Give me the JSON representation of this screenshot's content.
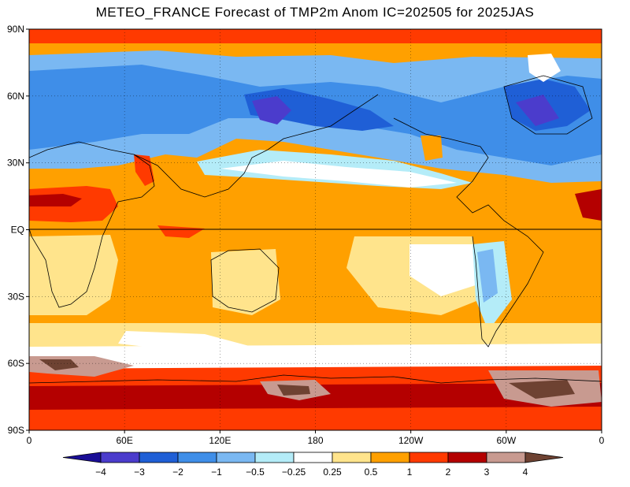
{
  "title": "METEO_FRANCE Forecast of TMP2m Anom IC=202505 for 2025JAS",
  "lat_ticks": [
    "90N",
    "60N",
    "30N",
    "EQ",
    "30S",
    "60S",
    "90S"
  ],
  "lon_ticks": [
    "0",
    "60E",
    "120E",
    "180",
    "120W",
    "60W",
    "0"
  ],
  "colorbar": {
    "labels": [
      "−4",
      "−3",
      "−2",
      "−1",
      "−0.5",
      "−0.25",
      "0.25",
      "0.5",
      "1",
      "2",
      "3",
      "4"
    ],
    "colors": [
      "#1a0e96",
      "#4b3ccc",
      "#1f5fd6",
      "#3f8ee8",
      "#7ab8f2",
      "#b4ecf8",
      "#ffffff",
      "#ffe48c",
      "#ffa000",
      "#ff3a00",
      "#b40000",
      "#c89a90",
      "#6e4232"
    ]
  },
  "colors": {
    "ocean_warm": "#ffa000",
    "ocean_mild": "#ffe48c",
    "neutral": "#ffffff",
    "arctic_warm": "#ff3a00",
    "antarctic_hot": "#b40000",
    "cool_land": "#3f8ee8",
    "cold_land": "#1f5fd6",
    "coastline": "#000000"
  }
}
